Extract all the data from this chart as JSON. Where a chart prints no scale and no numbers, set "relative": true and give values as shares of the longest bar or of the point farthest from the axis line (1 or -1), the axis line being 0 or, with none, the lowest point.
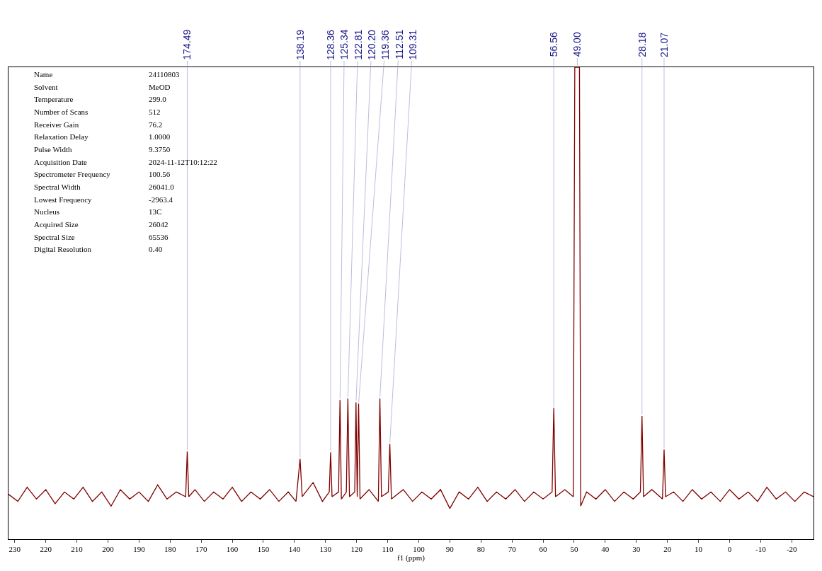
{
  "chart_data": {
    "type": "line",
    "xlabel": "f1 (ppm)",
    "relative": true,
    "tick_labels": "x",
    "marker": "none",
    "color": "#800000",
    "xlim": [
      232,
      -27
    ],
    "xticks": [
      230,
      220,
      210,
      200,
      190,
      180,
      170,
      160,
      150,
      140,
      130,
      120,
      110,
      100,
      90,
      80,
      70,
      60,
      50,
      40,
      30,
      20,
      10,
      0,
      -10,
      -20
    ],
    "x": [
      232,
      229,
      226,
      223,
      220,
      217,
      214,
      211,
      208,
      205,
      202,
      199,
      196,
      193,
      190,
      187,
      184,
      181,
      178,
      175.0,
      174.49,
      174.0,
      172,
      169,
      166,
      163,
      160,
      157,
      154,
      151,
      148,
      145,
      142,
      139.5,
      138.19,
      137.5,
      134,
      131,
      128.8,
      128.36,
      127.9,
      125.8,
      125.34,
      124.9,
      123.3,
      122.81,
      122.3,
      120.6,
      120.2,
      119.8,
      119.36,
      118.9,
      116,
      113,
      112.51,
      112.0,
      109.8,
      109.31,
      108.8,
      105,
      102,
      99,
      96,
      93,
      90,
      87,
      84,
      81,
      78,
      75,
      72,
      69,
      66,
      63,
      60,
      57.1,
      56.56,
      56.0,
      53,
      50.3,
      49.8,
      49.0,
      48.3,
      47.9,
      46,
      43,
      40,
      37,
      34,
      31,
      28.7,
      28.18,
      27.7,
      25,
      21.6,
      21.07,
      20.6,
      18,
      15,
      12,
      9,
      6,
      3,
      0,
      -3,
      -6,
      -9,
      -12,
      -15,
      -18,
      -21,
      -24,
      -27
    ],
    "values": [
      0.095,
      0.08,
      0.11,
      0.085,
      0.105,
      0.075,
      0.1,
      0.085,
      0.11,
      0.08,
      0.1,
      0.07,
      0.105,
      0.085,
      0.1,
      0.08,
      0.115,
      0.085,
      0.1,
      0.09,
      0.186,
      0.09,
      0.105,
      0.08,
      0.1,
      0.085,
      0.11,
      0.08,
      0.1,
      0.085,
      0.105,
      0.08,
      0.1,
      0.08,
      0.17,
      0.09,
      0.12,
      0.08,
      0.1,
      0.184,
      0.09,
      0.1,
      0.295,
      0.085,
      0.1,
      0.298,
      0.09,
      0.1,
      0.29,
      0.09,
      0.287,
      0.085,
      0.105,
      0.08,
      0.298,
      0.09,
      0.1,
      0.202,
      0.085,
      0.105,
      0.08,
      0.1,
      0.085,
      0.105,
      0.065,
      0.1,
      0.085,
      0.11,
      0.08,
      0.1,
      0.085,
      0.105,
      0.08,
      0.1,
      0.085,
      0.1,
      0.278,
      0.09,
      0.105,
      0.09,
      1,
      1,
      1,
      0.07,
      0.1,
      0.085,
      0.105,
      0.08,
      0.1,
      0.085,
      0.1,
      0.261,
      0.09,
      0.105,
      0.085,
      0.19,
      0.09,
      0.1,
      0.08,
      0.105,
      0.085,
      0.1,
      0.08,
      0.105,
      0.085,
      0.1,
      0.08,
      0.11,
      0.085,
      0.1,
      0.08,
      0.1,
      0.09
    ],
    "annotations": [
      {
        "text": "174.49",
        "x": 174.49,
        "y": 0.186
      },
      {
        "text": "138.19",
        "x": 138.19,
        "y": 0.17
      },
      {
        "text": "128.36",
        "x": 128.36,
        "y": 0.184
      },
      {
        "text": "125.34",
        "x": 125.34,
        "y": 0.295
      },
      {
        "text": "122.81",
        "x": 122.81,
        "y": 0.298
      },
      {
        "text": "120.20",
        "x": 120.2,
        "y": 0.29
      },
      {
        "text": "119.36",
        "x": 119.36,
        "y": 0.287
      },
      {
        "text": "112.51",
        "x": 112.51,
        "y": 0.298
      },
      {
        "text": "109.31",
        "x": 109.31,
        "y": 0.202
      },
      {
        "text": "56.56",
        "x": 56.56,
        "y": 0.278
      },
      {
        "text": "49.00",
        "x": 49.0,
        "y": 1
      },
      {
        "text": "28.18",
        "x": 28.18,
        "y": 0.261
      },
      {
        "text": "21.07",
        "x": 21.07,
        "y": 0.19
      },
      "Name",
      "24110803",
      "Solvent",
      "MeOD",
      "Temperature",
      "299.0",
      "Number of Scans",
      "512",
      "Receiver Gain",
      "76.2",
      "Relaxation Delay",
      "1.0000",
      "Pulse Width",
      "9.3750",
      "Acquisition Date",
      "2024-11-12T10:12:22",
      "Spectrometer Frequency",
      "100.56",
      "Spectral Width",
      "26041.0",
      "Lowest Frequency",
      "-2963.4",
      "Nucleus",
      "13C",
      "Acquired Size",
      "26042",
      "Spectral Size",
      "65536",
      "Digital Resolution",
      "0.40"
    ]
  }
}
